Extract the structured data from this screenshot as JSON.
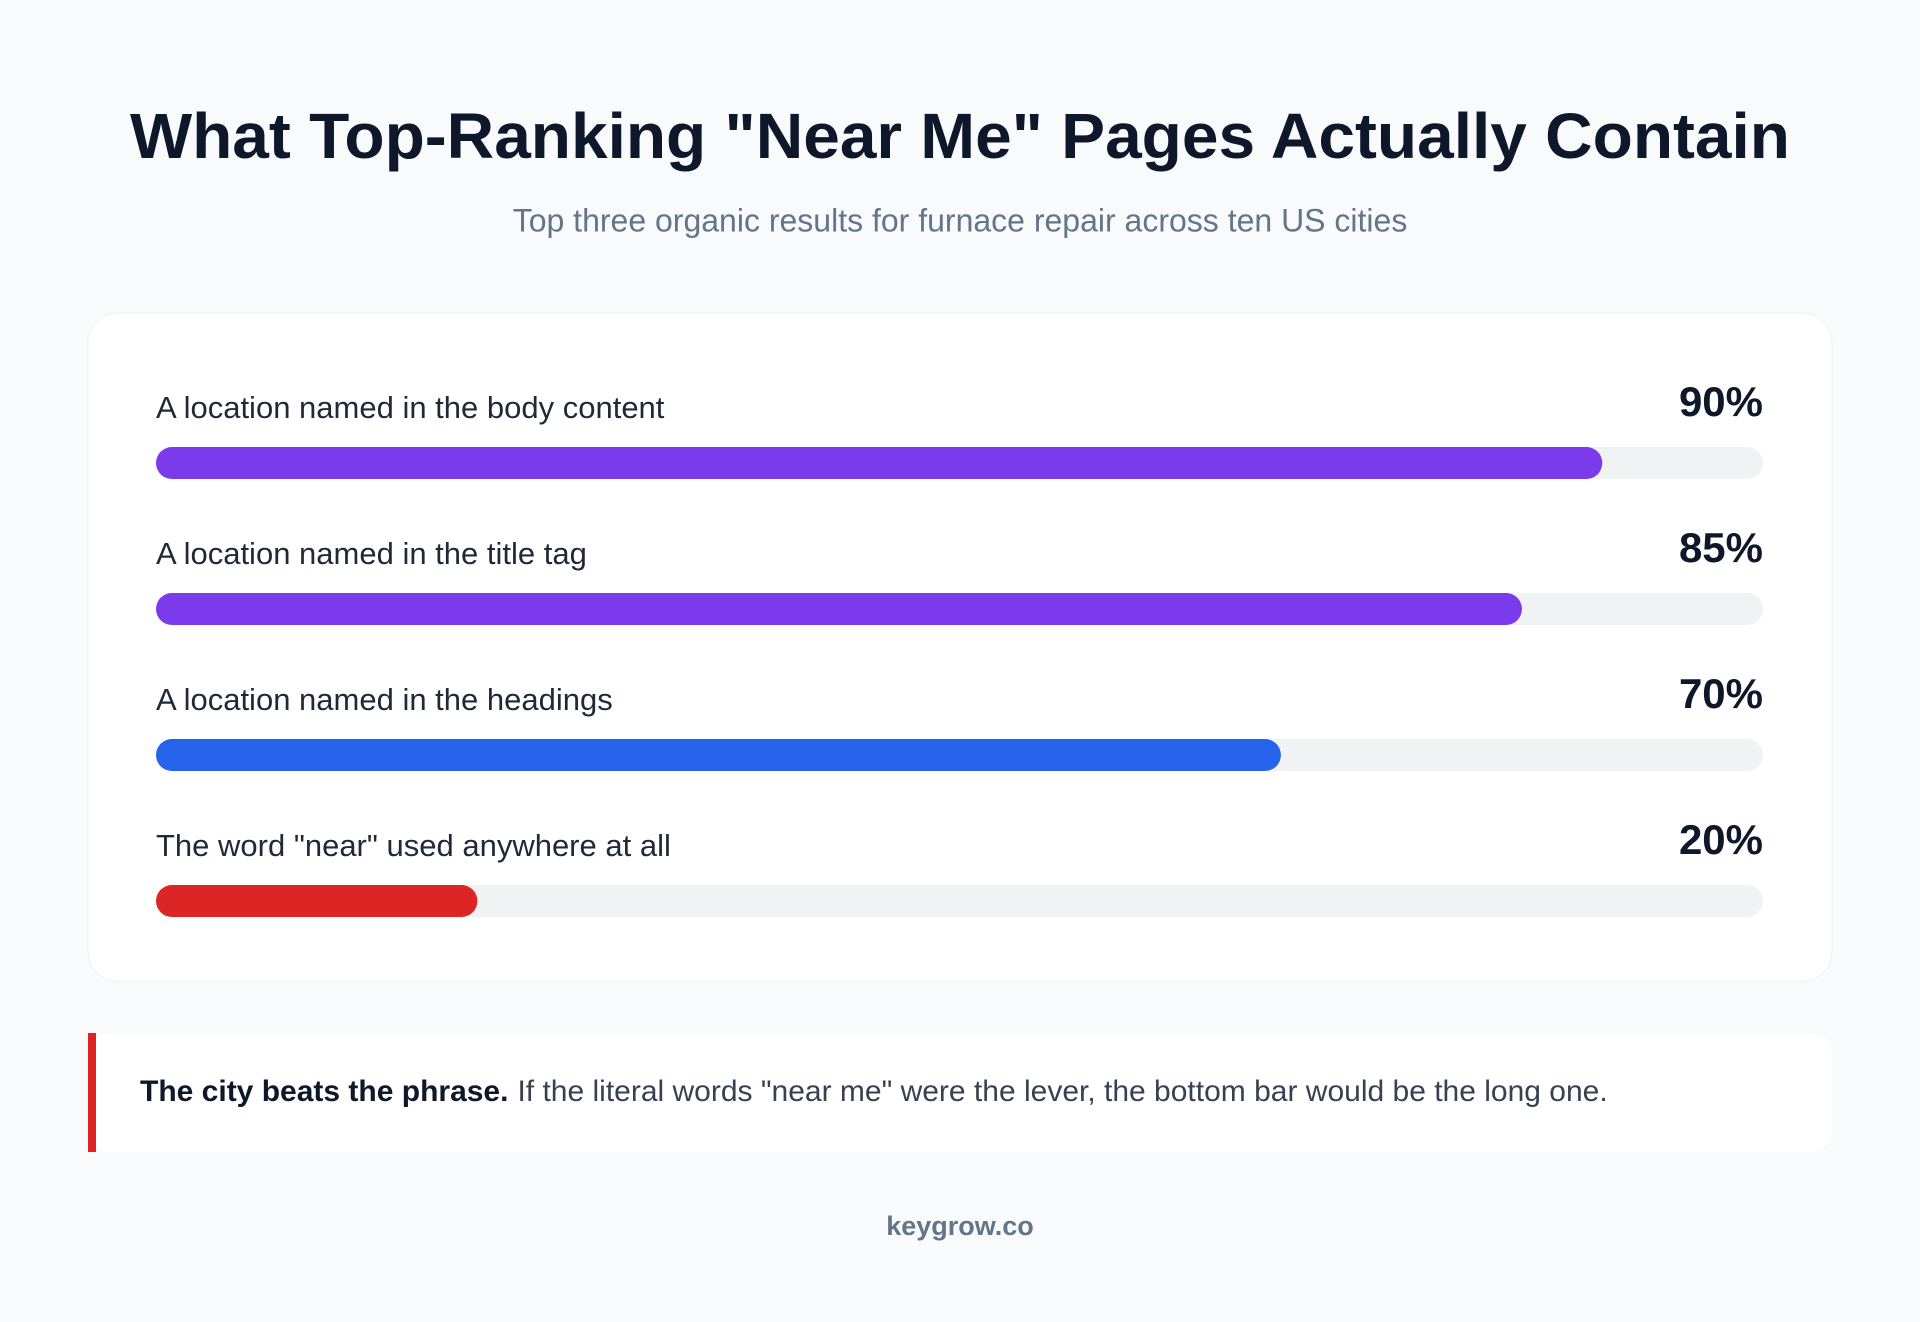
{
  "chart_data": {
    "type": "hbar",
    "title": "What Top-Ranking \"Near Me\" Pages Actually Contain",
    "subtitle": "Top three organic results for furnace repair across ten US cities",
    "categories": [
      "A location named in the body content",
      "A location named in the title tag",
      "A location named in the headings",
      "The word \"near\" used anywhere at all"
    ],
    "values": [
      90,
      85,
      70,
      20
    ],
    "value_labels": [
      "90%",
      "85%",
      "70%",
      "20%"
    ],
    "colors": [
      "#7c3aed",
      "#7c3aed",
      "#2563eb",
      "#dc2626"
    ],
    "xlim": [
      0,
      100
    ],
    "annotation_lead": "The city beats the phrase.",
    "annotation": "If the literal words \"near me\" were the lever, the bottom bar would be the long one.",
    "footer": "keygrow.co"
  }
}
